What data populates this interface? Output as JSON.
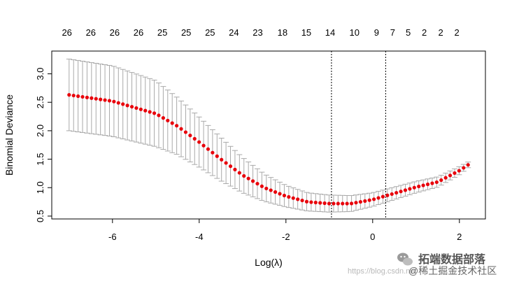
{
  "chart_data": {
    "type": "scatter",
    "xlabel": "Log(λ)",
    "ylabel": "Binomial Deviance",
    "xlim": [
      -7.4,
      2.6
    ],
    "ylim": [
      0.45,
      3.4
    ],
    "x_ticks": [
      -6,
      -4,
      -2,
      0,
      2
    ],
    "x_tick_labels": [
      "-6",
      "-4",
      "-2",
      "0",
      "2"
    ],
    "y_ticks": [
      0.5,
      1.0,
      1.5,
      2.0,
      2.5,
      3.0
    ],
    "y_tick_labels": [
      "0.5",
      "1.0",
      "1.5",
      "2.0",
      "2.5",
      "3.0"
    ],
    "top_axis": {
      "x": [
        -7.05,
        -6.5,
        -5.95,
        -5.4,
        -4.85,
        -4.3,
        -3.75,
        -3.2,
        -2.65,
        -2.08,
        -1.53,
        -0.98,
        -0.42,
        0.09,
        0.46,
        0.82,
        1.19,
        1.57,
        1.94
      ],
      "labels": [
        "26",
        "26",
        "26",
        "26",
        "25",
        "25",
        "25",
        "24",
        "23",
        "18",
        "15",
        "14",
        "10",
        "9",
        "7",
        "5",
        "2",
        "2",
        "2"
      ]
    },
    "vlines": [
      -0.95,
      0.3
    ],
    "series": [
      {
        "x_start": -7.0,
        "x_end": 2.2,
        "count": 90,
        "knots": [
          {
            "x": -7.0,
            "y": 2.63,
            "se": 0.63
          },
          {
            "x": -6.0,
            "y": 2.52,
            "se": 0.62
          },
          {
            "x": -5.0,
            "y": 2.3,
            "se": 0.58
          },
          {
            "x": -4.5,
            "y": 2.08,
            "se": 0.5
          },
          {
            "x": -4.0,
            "y": 1.8,
            "se": 0.44
          },
          {
            "x": -3.5,
            "y": 1.5,
            "se": 0.38
          },
          {
            "x": -3.0,
            "y": 1.22,
            "se": 0.31
          },
          {
            "x": -2.5,
            "y": 1.0,
            "se": 0.24
          },
          {
            "x": -2.0,
            "y": 0.85,
            "se": 0.19
          },
          {
            "x": -1.5,
            "y": 0.75,
            "se": 0.16
          },
          {
            "x": -1.0,
            "y": 0.72,
            "se": 0.15
          },
          {
            "x": -0.5,
            "y": 0.72,
            "se": 0.14
          },
          {
            "x": 0.0,
            "y": 0.79,
            "se": 0.12
          },
          {
            "x": 0.5,
            "y": 0.9,
            "se": 0.11
          },
          {
            "x": 1.0,
            "y": 1.01,
            "se": 0.1
          },
          {
            "x": 1.5,
            "y": 1.1,
            "se": 0.09
          },
          {
            "x": 2.0,
            "y": 1.3,
            "se": 0.07
          },
          {
            "x": 2.2,
            "y": 1.4,
            "se": 0.05
          }
        ]
      }
    ],
    "point_color": "#e8000b",
    "errorbar_color": "#a9a9a9",
    "grid": false
  },
  "watermark": {
    "url": "https://blog.csdn.net",
    "brand": "拓端数据部落",
    "sub": "@稀土掘金技术社区"
  }
}
